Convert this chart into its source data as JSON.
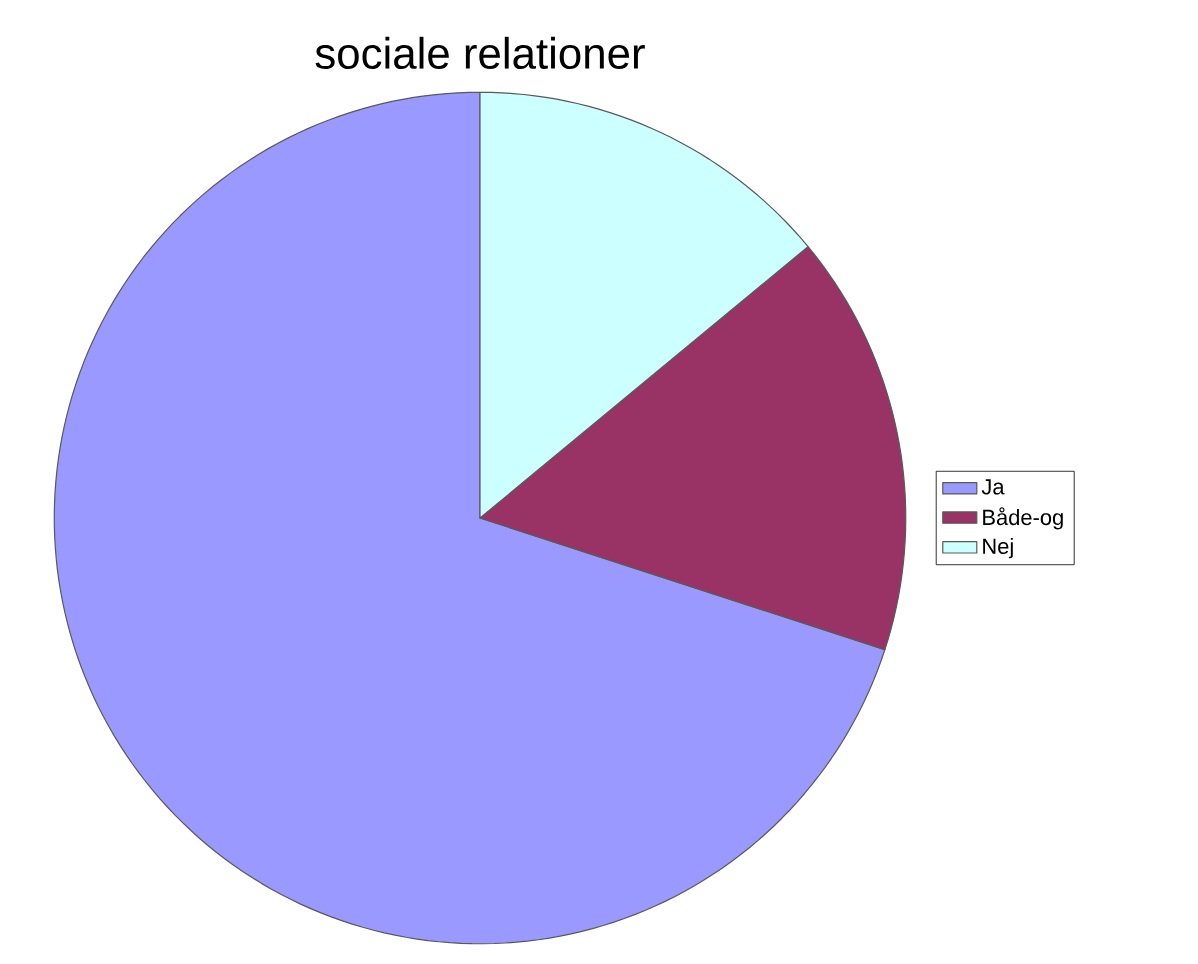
{
  "chart_data": {
    "type": "pie",
    "title": "sociale relationer",
    "categories": [
      "Ja",
      "Både-og",
      "Nej"
    ],
    "values": [
      70,
      16,
      14
    ],
    "colors": [
      "#9999ff",
      "#993366",
      "#ccffff"
    ],
    "legend": "right"
  }
}
